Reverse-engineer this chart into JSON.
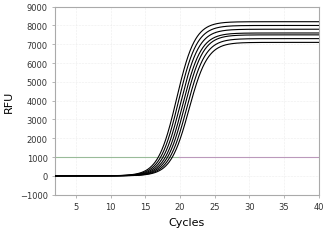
{
  "title": "",
  "xlabel": "Cycles",
  "ylabel": "RFU",
  "xlim": [
    2,
    40
  ],
  "ylim": [
    -1000,
    9000
  ],
  "xticks": [
    5,
    10,
    15,
    20,
    25,
    30,
    35,
    40
  ],
  "yticks": [
    -1000,
    0,
    1000,
    2000,
    3000,
    4000,
    5000,
    6000,
    7000,
    8000,
    9000
  ],
  "threshold_y": 1000,
  "threshold_color_green": "#99bb99",
  "threshold_color_magenta": "#bb99bb",
  "num_curves": 7,
  "curve_midpoints": [
    19.5,
    19.8,
    20.1,
    20.4,
    20.7,
    21.0,
    21.3
  ],
  "curve_plateaus": [
    8200,
    8000,
    7800,
    7600,
    7500,
    7300,
    7100
  ],
  "curve_steepness": 0.75,
  "curve_color": "#000000",
  "background_color": "#ffffff",
  "axes_face_color": "#ffffff",
  "tick_fontsize": 6,
  "label_fontsize": 8,
  "spine_color": "#aaaaaa",
  "grid_color": "#dddddd"
}
